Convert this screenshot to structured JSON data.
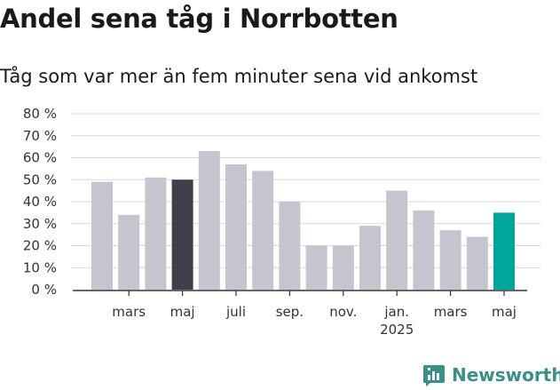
{
  "title": "Andel sena tåg i Norrbotten",
  "subtitle": "Tåg som var mer än fem minuter sena vid ankomst",
  "brand": "Newsworthy",
  "colors": {
    "bar": "#c6c4cf",
    "highlight_dark": "#403e4a",
    "highlight_teal": "#00a69b",
    "grid": "#d9d9d9",
    "axis": "#333333",
    "brand": "#3b8f86"
  },
  "chart_data": {
    "type": "bar",
    "y_unit": "%",
    "ylim": [
      0,
      80
    ],
    "y_ticks": [
      "0 %",
      "10 %",
      "20 %",
      "30 %",
      "40 %",
      "50 %",
      "60 %",
      "70 %",
      "80 %"
    ],
    "grid": true,
    "values": [
      49,
      34,
      51,
      50,
      63,
      57,
      54,
      40,
      20,
      20,
      29,
      45,
      36,
      27,
      24,
      35
    ],
    "highlight": {
      "3": "highlight_dark",
      "15": "highlight_teal"
    },
    "x_labels": [
      {
        "index": 1,
        "label": "mars"
      },
      {
        "index": 3,
        "label": "maj"
      },
      {
        "index": 5,
        "label": "juli"
      },
      {
        "index": 7,
        "label": "sep."
      },
      {
        "index": 9,
        "label": "nov."
      },
      {
        "index": 11,
        "label": "jan.",
        "sub": "2025"
      },
      {
        "index": 13,
        "label": "mars"
      },
      {
        "index": 15,
        "label": "maj"
      }
    ]
  }
}
